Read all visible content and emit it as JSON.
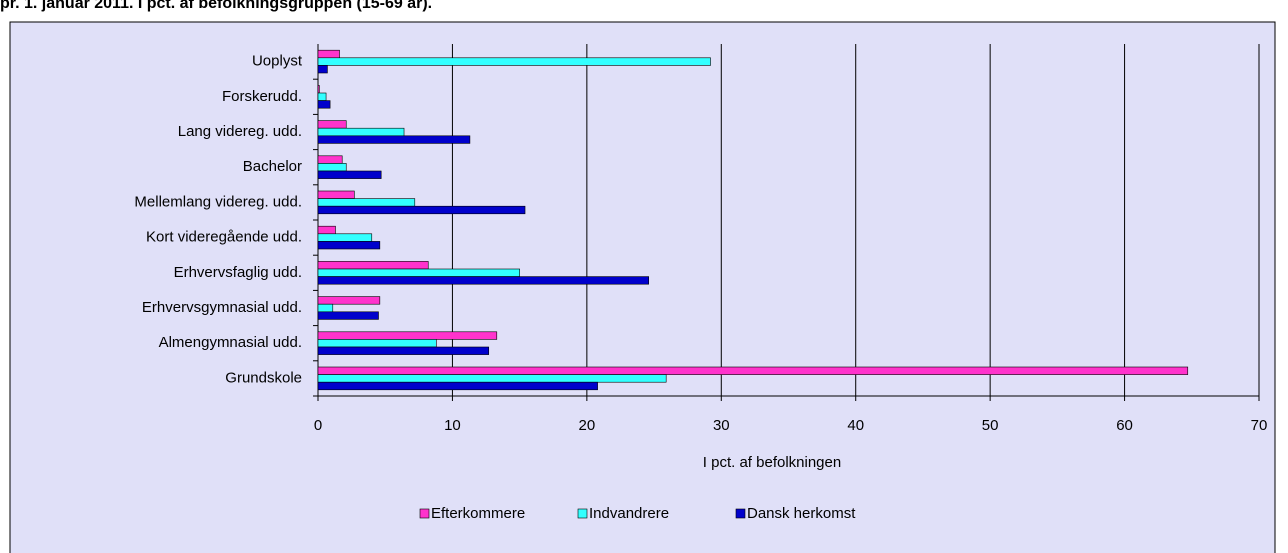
{
  "chart_data": {
    "type": "hbar",
    "title": "pr. 1. januar 2011. I pct. af befolkningsgruppen (15-69 år).",
    "xlabel": "I pct. af befolkningen",
    "categories": [
      "Grundskole",
      "Almengymnasial udd.",
      "Erhvervsgymnasial udd.",
      "Erhvervsfaglig udd.",
      "Kort videregående udd.",
      "Mellemlang videreg. udd.",
      "Bachelor",
      "Lang videreg. udd.",
      "Forskerudd.",
      "Uoplyst"
    ],
    "series": [
      {
        "name": "Efterkommere",
        "color": "#ff33cc",
        "values": [
          64.7,
          13.3,
          4.6,
          8.2,
          1.3,
          2.7,
          1.8,
          2.1,
          0.1,
          1.6
        ]
      },
      {
        "name": "Indvandrere",
        "color": "#33ffff",
        "values": [
          25.9,
          8.8,
          1.1,
          15.0,
          4.0,
          7.2,
          2.1,
          6.4,
          0.6,
          29.2
        ]
      },
      {
        "name": "Dansk herkomst",
        "color": "#0000cc",
        "values": [
          20.8,
          12.7,
          4.5,
          24.6,
          4.6,
          15.4,
          4.7,
          11.3,
          0.9,
          0.7
        ]
      }
    ],
    "xlim": [
      0,
      70
    ],
    "xticks": [
      0,
      10,
      20,
      30,
      40,
      50,
      60,
      70
    ],
    "grid": true,
    "legend": "bottom"
  }
}
